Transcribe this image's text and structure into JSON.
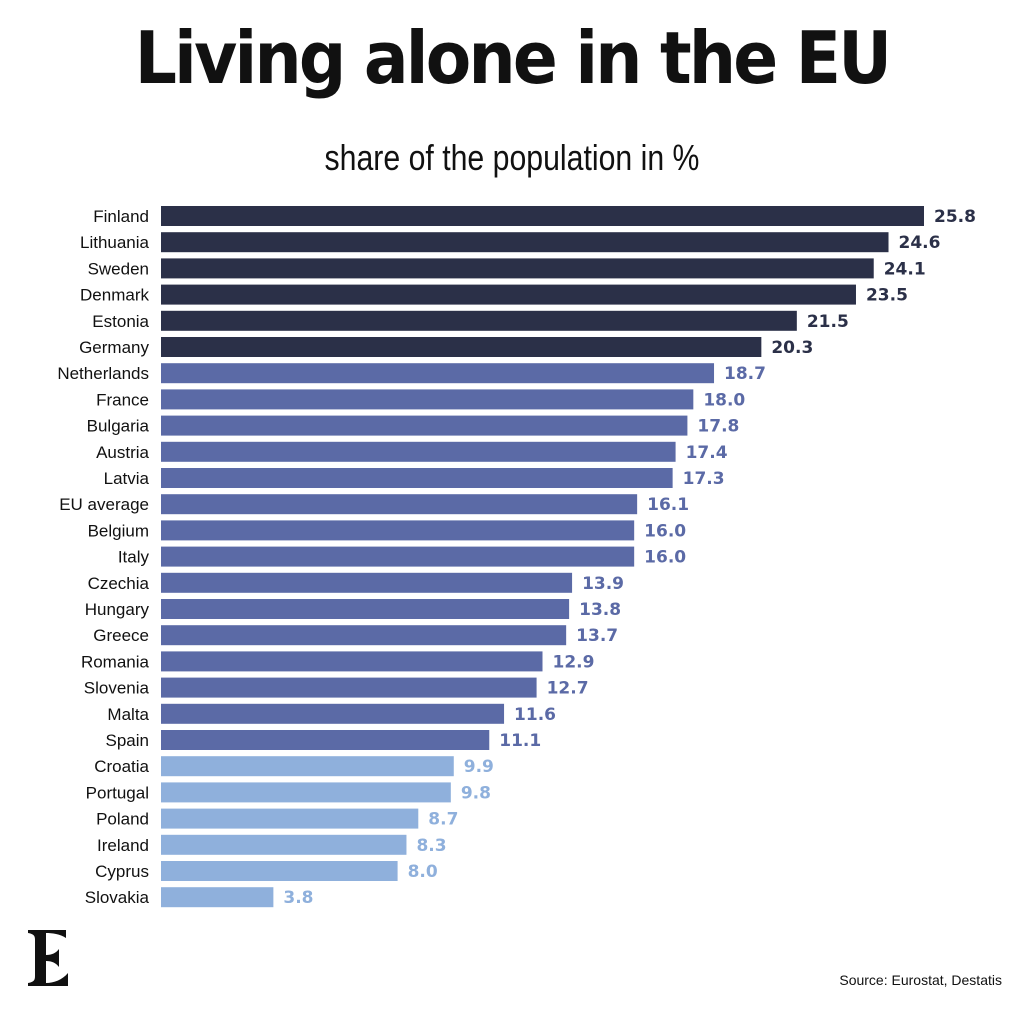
{
  "chart_data": {
    "type": "bar",
    "orientation": "horizontal",
    "title": "Living alone in the EU",
    "subtitle": "share of the population in %",
    "categories": [
      "Finland",
      "Lithuania",
      "Sweden",
      "Denmark",
      "Estonia",
      "Germany",
      "Netherlands",
      "France",
      "Bulgaria",
      "Austria",
      "Latvia",
      "EU average",
      "Belgium",
      "Italy",
      "Czechia",
      "Hungary",
      "Greece",
      "Romania",
      "Slovenia",
      "Malta",
      "Spain",
      "Croatia",
      "Portugal",
      "Poland",
      "Ireland",
      "Cyprus",
      "Slovakia"
    ],
    "values": [
      25.8,
      24.6,
      24.1,
      23.5,
      21.5,
      20.3,
      18.7,
      18.0,
      17.8,
      17.4,
      17.3,
      16.1,
      16.0,
      16.0,
      13.9,
      13.8,
      13.7,
      12.9,
      12.7,
      11.6,
      11.1,
      9.9,
      9.8,
      8.7,
      8.3,
      8.0,
      3.8
    ],
    "labels": [
      "25.8",
      "24.6",
      "24.1",
      "23.5",
      "21.5",
      "20.3",
      "18.7",
      "18.0",
      "17.8",
      "17.4",
      "17.3",
      "16.1",
      "16.0",
      "16.0",
      "13.9",
      "13.8",
      "13.7",
      "12.9",
      "12.7",
      "11.6",
      "11.1",
      "9.9",
      "9.8",
      "8.7",
      "8.3",
      "8.0",
      "3.8"
    ],
    "xlim": [
      0,
      25.8
    ],
    "grid": false,
    "legend": "none",
    "color_tiers": [
      {
        "min": 20,
        "color": "#2b3048"
      },
      {
        "min": 11,
        "color": "#5b6aa6"
      },
      {
        "min": 0,
        "color": "#8fb0dc"
      }
    ]
  },
  "footer": {
    "source": "Source: Eurostat, Destatis",
    "logo_letter": "E"
  }
}
